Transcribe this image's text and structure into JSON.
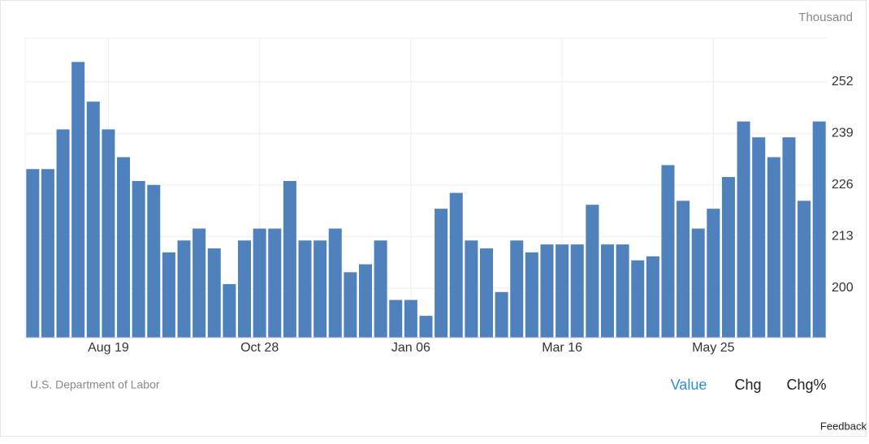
{
  "chart_data": {
    "type": "bar",
    "unit": "Thousand",
    "categories": [
      null,
      null,
      null,
      null,
      null,
      "Aug 19",
      null,
      null,
      null,
      null,
      null,
      null,
      null,
      null,
      null,
      "Oct 28",
      null,
      null,
      null,
      null,
      null,
      null,
      null,
      null,
      null,
      "Jan 06",
      null,
      null,
      null,
      null,
      null,
      null,
      null,
      null,
      null,
      "Mar 16",
      null,
      null,
      null,
      null,
      null,
      null,
      null,
      null,
      null,
      "May 25",
      null,
      null,
      null,
      null,
      null,
      null,
      null
    ],
    "values": [
      230,
      230,
      240,
      257,
      247,
      240,
      233,
      227,
      226,
      209,
      212,
      215,
      210,
      201,
      212,
      215,
      215,
      227,
      212,
      212,
      215,
      204,
      206,
      212,
      197,
      197,
      193,
      220,
      224,
      212,
      210,
      199,
      212,
      209,
      211,
      211,
      211,
      221,
      211,
      211,
      207,
      208,
      231,
      222,
      215,
      220,
      228,
      242,
      238,
      233,
      238,
      222,
      242
    ],
    "color": "#4f81bd",
    "ylim": [
      187.5,
      263
    ],
    "yticks": [
      200,
      213,
      226,
      239,
      252
    ],
    "grid": true,
    "source": "U.S. Department of Labor",
    "tabs": [
      "Value",
      "Chg",
      "Chg%"
    ],
    "feedback": "Feedback"
  }
}
